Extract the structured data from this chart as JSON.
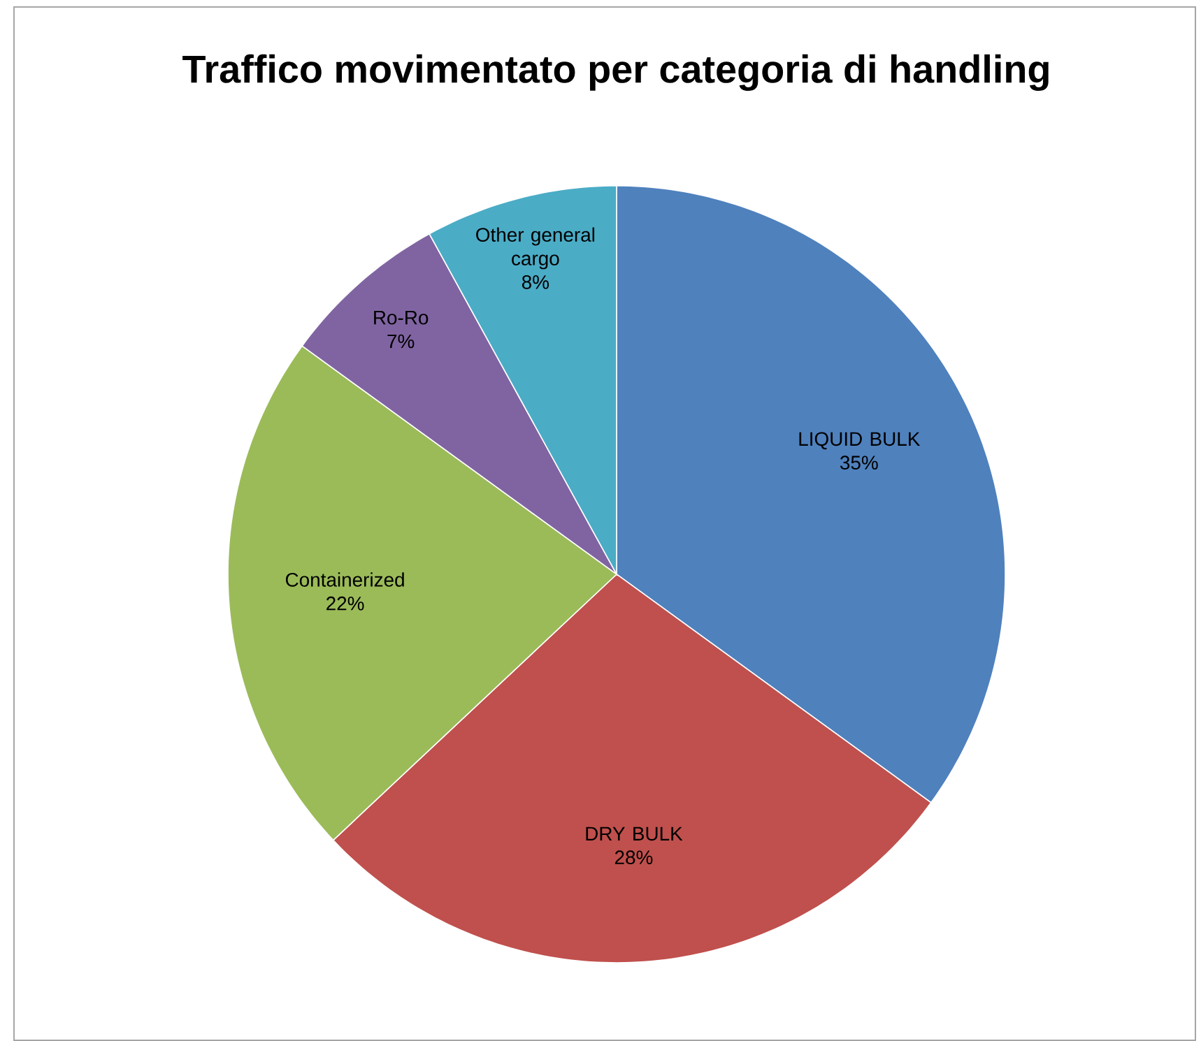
{
  "chart_data": {
    "type": "pie",
    "title": "Traffico movimentato per categoria di handling",
    "categories": [
      "LIQUID BULK",
      "DRY BULK",
      "Containerized",
      "Ro-Ro",
      "Other general cargo"
    ],
    "values": [
      35,
      28,
      22,
      7,
      8
    ],
    "value_labels": [
      "35%",
      "28%",
      "22%",
      "7%",
      "8%"
    ],
    "colors": [
      "#4f81bd",
      "#c0504d",
      "#9bbb59",
      "#8064a2",
      "#4bacc6"
    ]
  }
}
